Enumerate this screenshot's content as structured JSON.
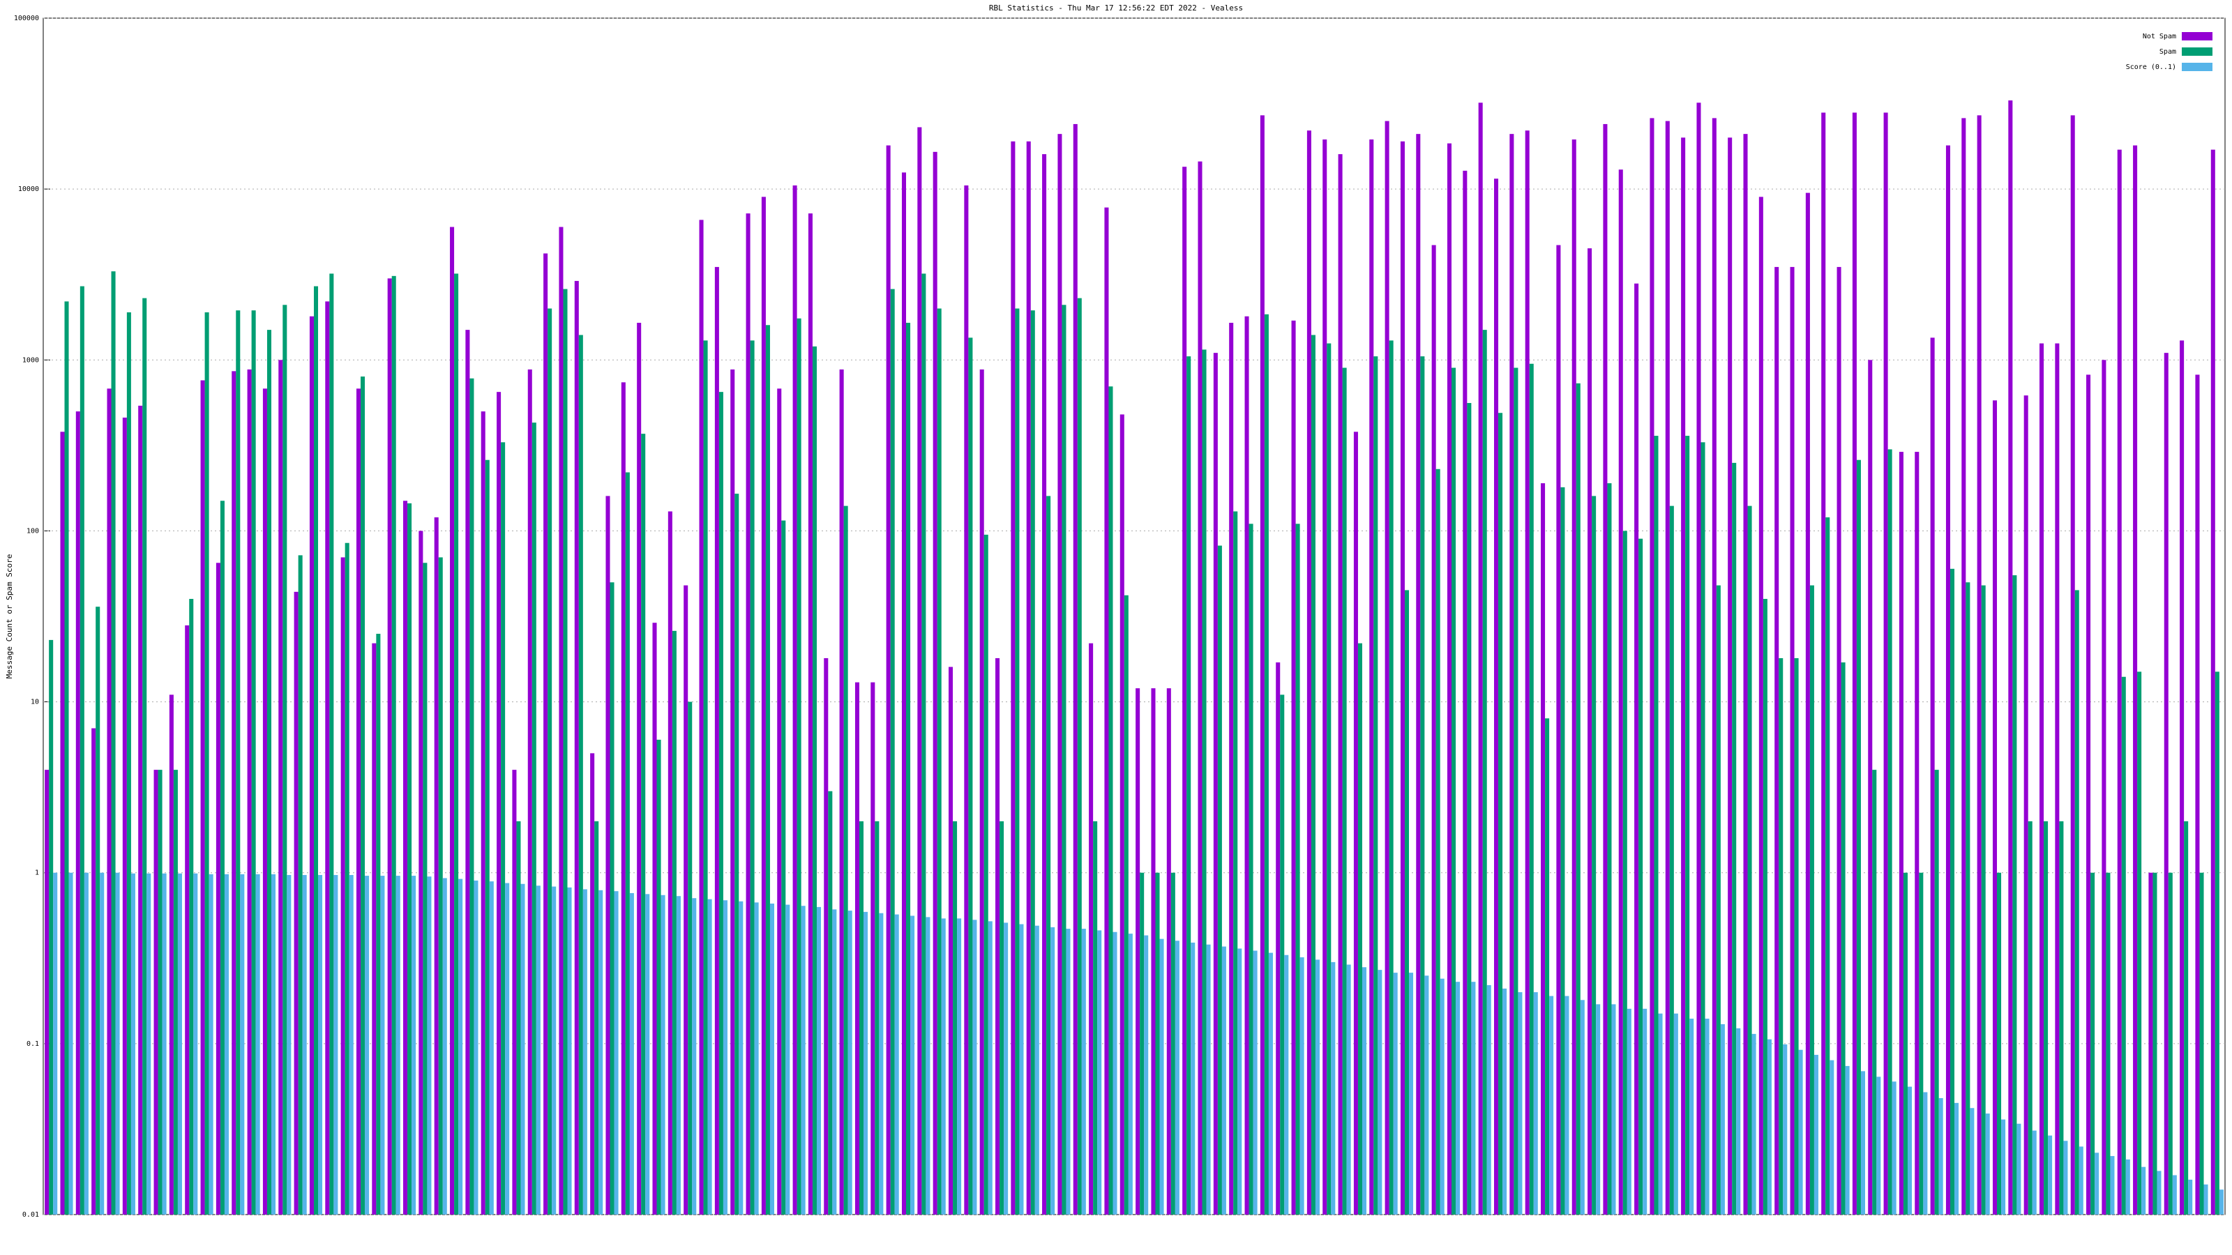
{
  "chart_data": {
    "type": "bar",
    "title": "RBL Statistics - Thu Mar 17 12:56:22 EDT 2022 - Vealess",
    "y_label": "Message Count or Spam Score",
    "log_scale": true,
    "grid": true,
    "legend": "top-right",
    "ylim": [
      0.01,
      100000
    ],
    "yticks": [
      0.01,
      0.1,
      1,
      10,
      100,
      1000,
      10000,
      100000
    ],
    "categories": [
      null,
      null,
      null,
      null,
      null,
      null,
      null,
      null,
      null,
      null,
      null,
      null,
      null,
      null,
      null,
      null,
      null,
      null,
      null,
      null,
      null,
      null,
      null,
      null,
      null,
      null,
      null,
      null,
      null,
      null,
      null,
      null,
      null,
      null,
      null,
      null,
      null,
      null,
      null,
      null,
      null,
      null,
      null,
      null,
      null,
      null,
      null,
      null,
      null,
      null,
      null,
      null,
      null,
      null,
      null,
      null,
      null,
      null,
      null,
      null,
      null,
      null,
      null,
      null,
      null,
      null,
      null,
      null,
      null,
      null,
      null,
      null,
      null,
      null,
      null,
      null,
      null,
      null,
      null,
      null,
      null,
      null,
      null,
      null,
      null,
      null,
      null,
      null,
      null,
      null,
      null,
      null,
      null,
      null,
      null,
      null,
      null,
      null,
      null,
      null,
      null,
      null,
      null,
      null,
      null,
      null,
      null,
      null,
      null,
      null,
      null,
      null,
      null,
      null,
      null,
      null,
      null,
      null,
      null,
      null,
      null,
      null,
      null,
      null,
      null,
      null,
      null,
      null,
      null,
      null,
      null,
      null,
      null,
      null,
      null,
      null,
      null,
      null,
      null,
      null
    ],
    "series": [
      {
        "name": "Not Spam",
        "color": "#9400d3",
        "values": [
          4,
          380,
          500,
          7,
          680,
          460,
          540,
          4,
          11,
          28,
          760,
          65,
          860,
          880,
          680,
          1000,
          44,
          1800,
          2200,
          70,
          680,
          22,
          3000,
          150,
          100,
          120,
          6000,
          1500,
          500,
          650,
          4,
          880,
          4200,
          6000,
          2900,
          5,
          160,
          740,
          1650,
          29,
          130,
          48,
          6600,
          3500,
          880,
          7200,
          9000,
          680,
          10500,
          7200,
          18,
          880,
          13,
          13,
          18000,
          12500,
          23000,
          16500,
          16,
          10500,
          880,
          18,
          19000,
          19000,
          16000,
          21000,
          24000,
          22,
          7800,
          480,
          12,
          12,
          12,
          13500,
          14500,
          1100,
          1650,
          1800,
          27000,
          17,
          1700,
          22000,
          19500,
          16000,
          380,
          19500,
          25000,
          19000,
          21000,
          4700,
          18500,
          12800,
          32000,
          11500,
          21000,
          22000,
          190,
          4700,
          19500,
          4500,
          24000,
          13000,
          2800,
          26000,
          25000,
          20000,
          32000,
          26000,
          20000,
          21000,
          9000,
          3500,
          3500,
          9500,
          28000,
          3500,
          28000,
          1000,
          28000,
          290,
          290,
          1350,
          18000,
          26000,
          27000,
          580,
          33000,
          620,
          1250,
          1250,
          27000,
          820,
          1000,
          17000,
          18000,
          1,
          1100,
          1300,
          820,
          17000
        ]
      },
      {
        "name": "Spam",
        "color": "#009e73",
        "values": [
          23,
          2200,
          2700,
          36,
          3300,
          1900,
          2300,
          4,
          4,
          40,
          1900,
          150,
          1950,
          1950,
          1500,
          2100,
          72,
          2700,
          3200,
          85,
          800,
          25,
          3100,
          145,
          65,
          70,
          3200,
          780,
          260,
          330,
          2,
          430,
          2000,
          2600,
          1400,
          2,
          50,
          220,
          370,
          6,
          26,
          10,
          1300,
          650,
          165,
          1300,
          1600,
          115,
          1750,
          1200,
          3,
          140,
          2,
          2,
          2600,
          1650,
          3200,
          2000,
          2,
          1350,
          95,
          2,
          2000,
          1950,
          160,
          2100,
          2300,
          2,
          700,
          42,
          1,
          1,
          1,
          1050,
          1150,
          82,
          130,
          110,
          1850,
          11,
          110,
          1400,
          1250,
          900,
          22,
          1050,
          1300,
          45,
          1050,
          230,
          900,
          560,
          1500,
          490,
          900,
          950,
          8,
          180,
          730,
          160,
          190,
          100,
          90,
          360,
          140,
          360,
          330,
          48,
          250,
          140,
          40,
          18,
          18,
          48,
          120,
          17,
          260,
          4,
          300,
          1,
          1,
          4,
          60,
          50,
          48,
          1,
          55,
          2,
          2,
          2,
          45,
          1,
          1,
          14,
          15,
          1,
          1,
          2,
          1,
          15
        ]
      },
      {
        "name": "Score (0..1)",
        "color": "#56b4e9",
        "values": [
          1,
          1,
          1,
          1,
          1,
          0.99,
          0.99,
          0.99,
          0.99,
          0.99,
          0.98,
          0.98,
          0.98,
          0.98,
          0.98,
          0.97,
          0.97,
          0.97,
          0.97,
          0.97,
          0.96,
          0.96,
          0.96,
          0.96,
          0.95,
          0.93,
          0.92,
          0.9,
          0.89,
          0.87,
          0.86,
          0.84,
          0.83,
          0.82,
          0.8,
          0.79,
          0.78,
          0.76,
          0.75,
          0.74,
          0.73,
          0.71,
          0.7,
          0.69,
          0.68,
          0.67,
          0.66,
          0.65,
          0.64,
          0.63,
          0.61,
          0.6,
          0.59,
          0.58,
          0.57,
          0.56,
          0.55,
          0.54,
          0.54,
          0.53,
          0.52,
          0.51,
          0.5,
          0.49,
          0.48,
          0.47,
          0.47,
          0.46,
          0.45,
          0.44,
          0.43,
          0.41,
          0.4,
          0.39,
          0.38,
          0.37,
          0.36,
          0.35,
          0.34,
          0.33,
          0.32,
          0.31,
          0.3,
          0.29,
          0.28,
          0.27,
          0.26,
          0.26,
          0.25,
          0.24,
          0.23,
          0.23,
          0.22,
          0.21,
          0.2,
          0.2,
          0.19,
          0.19,
          0.18,
          0.17,
          0.17,
          0.16,
          0.16,
          0.15,
          0.15,
          0.14,
          0.14,
          0.13,
          0.123,
          0.114,
          0.106,
          0.099,
          0.092,
          0.086,
          0.08,
          0.074,
          0.069,
          0.064,
          0.06,
          0.056,
          0.052,
          0.048,
          0.045,
          0.042,
          0.039,
          0.036,
          0.034,
          0.031,
          0.029,
          0.027,
          0.025,
          0.023,
          0.022,
          0.021,
          0.019,
          0.018,
          0.017,
          0.016,
          0.015,
          0.014
        ]
      }
    ]
  }
}
